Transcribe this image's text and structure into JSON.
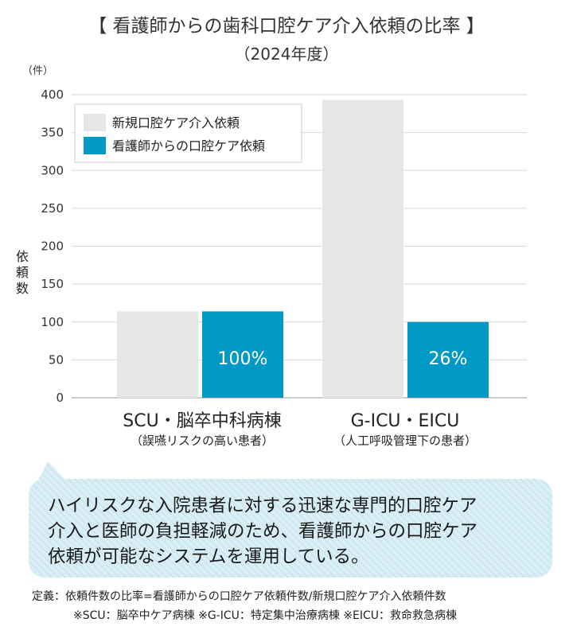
{
  "chart_data": {
    "type": "bar",
    "title": "【 看護師からの歯科口腔ケア介入依頼の比率 】",
    "subtitle": "（2024年度）",
    "ylabel": "依頼数",
    "yunit": "（件）",
    "ylim": [
      0,
      400
    ],
    "yticks": [
      0,
      50,
      100,
      150,
      200,
      250,
      300,
      350,
      400
    ],
    "categories": [
      "SCU・脳卒中科病棟",
      "G-ICU・EICU"
    ],
    "category_sublabels": [
      "（誤嚥リスクの高い患者）",
      "（人工呼吸管理下の患者）"
    ],
    "series": [
      {
        "name": "新規口腔ケア介入依頼",
        "color": "#e6e6e6",
        "values": [
          114,
          393
        ]
      },
      {
        "name": "看護師からの口腔ケア依頼",
        "color": "#0099c6",
        "values": [
          114,
          100
        ]
      }
    ],
    "data_labels": [
      "100%",
      "26%"
    ],
    "grid": true,
    "legend": "top-left"
  },
  "callout": {
    "lines": [
      "ハイリスクな入院患者に対する迅速な専門的口腔ケア",
      "介入と医師の負担軽減のため、看護師からの口腔ケア",
      "依頼が可能なシステムを運用している。"
    ]
  },
  "footnotes": {
    "definition": "定義：依頼件数の比率=看護師からの口腔ケア依頼件数/新規口腔ケア介入依頼件数",
    "abbreviations": "※SCU：脳卒中ケア病棟 ※G-ICU：特定集中治療病棟 ※EICU：救命救急病棟"
  }
}
